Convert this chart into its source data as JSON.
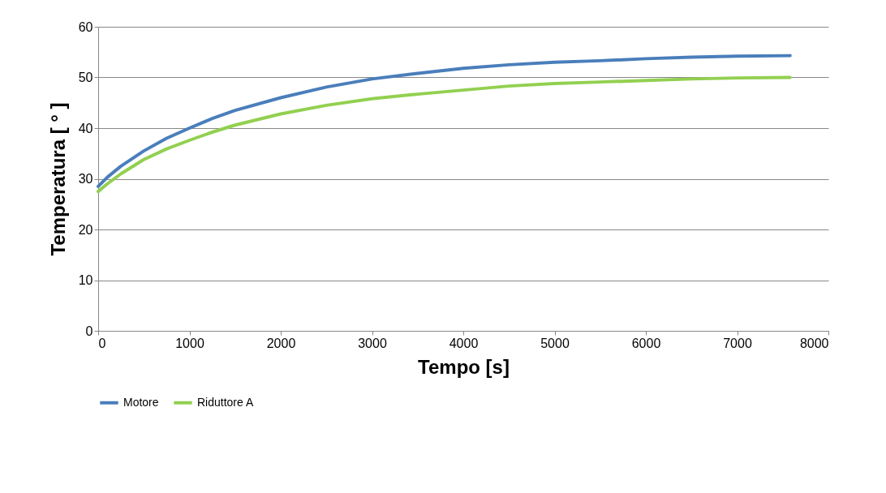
{
  "chart_data": {
    "type": "line",
    "xlabel": "Tempo [s]",
    "ylabel": "Temperatura [ ° ]",
    "x": [
      0,
      100,
      250,
      500,
      750,
      1000,
      1250,
      1500,
      2000,
      2500,
      3000,
      3500,
      4000,
      4500,
      5000,
      5500,
      6000,
      6500,
      7000,
      7580
    ],
    "series": [
      {
        "name": "Motore",
        "color": "#4a7ebb",
        "values": [
          28.5,
          30.3,
          32.5,
          35.5,
          38,
          40,
          41.9,
          43.5,
          46,
          48.1,
          49.7,
          50.8,
          51.8,
          52.5,
          53,
          53.3,
          53.7,
          54,
          54.2,
          54.3
        ]
      },
      {
        "name": "Riduttore A",
        "color": "#92d050",
        "values": [
          27.5,
          29,
          31,
          33.8,
          35.9,
          37.6,
          39.2,
          40.6,
          42.8,
          44.5,
          45.8,
          46.7,
          47.5,
          48.3,
          48.8,
          49.1,
          49.4,
          49.7,
          49.9,
          50
        ]
      }
    ],
    "xlim": [
      0,
      8000
    ],
    "xticks": [
      0,
      1000,
      2000,
      3000,
      4000,
      5000,
      6000,
      7000,
      8000
    ],
    "ylim": [
      0,
      60
    ],
    "yticks": [
      0,
      10,
      20,
      30,
      40,
      50,
      60
    ],
    "grid": "y",
    "legend": "bottom",
    "marker": "none",
    "line_style": "solid"
  }
}
